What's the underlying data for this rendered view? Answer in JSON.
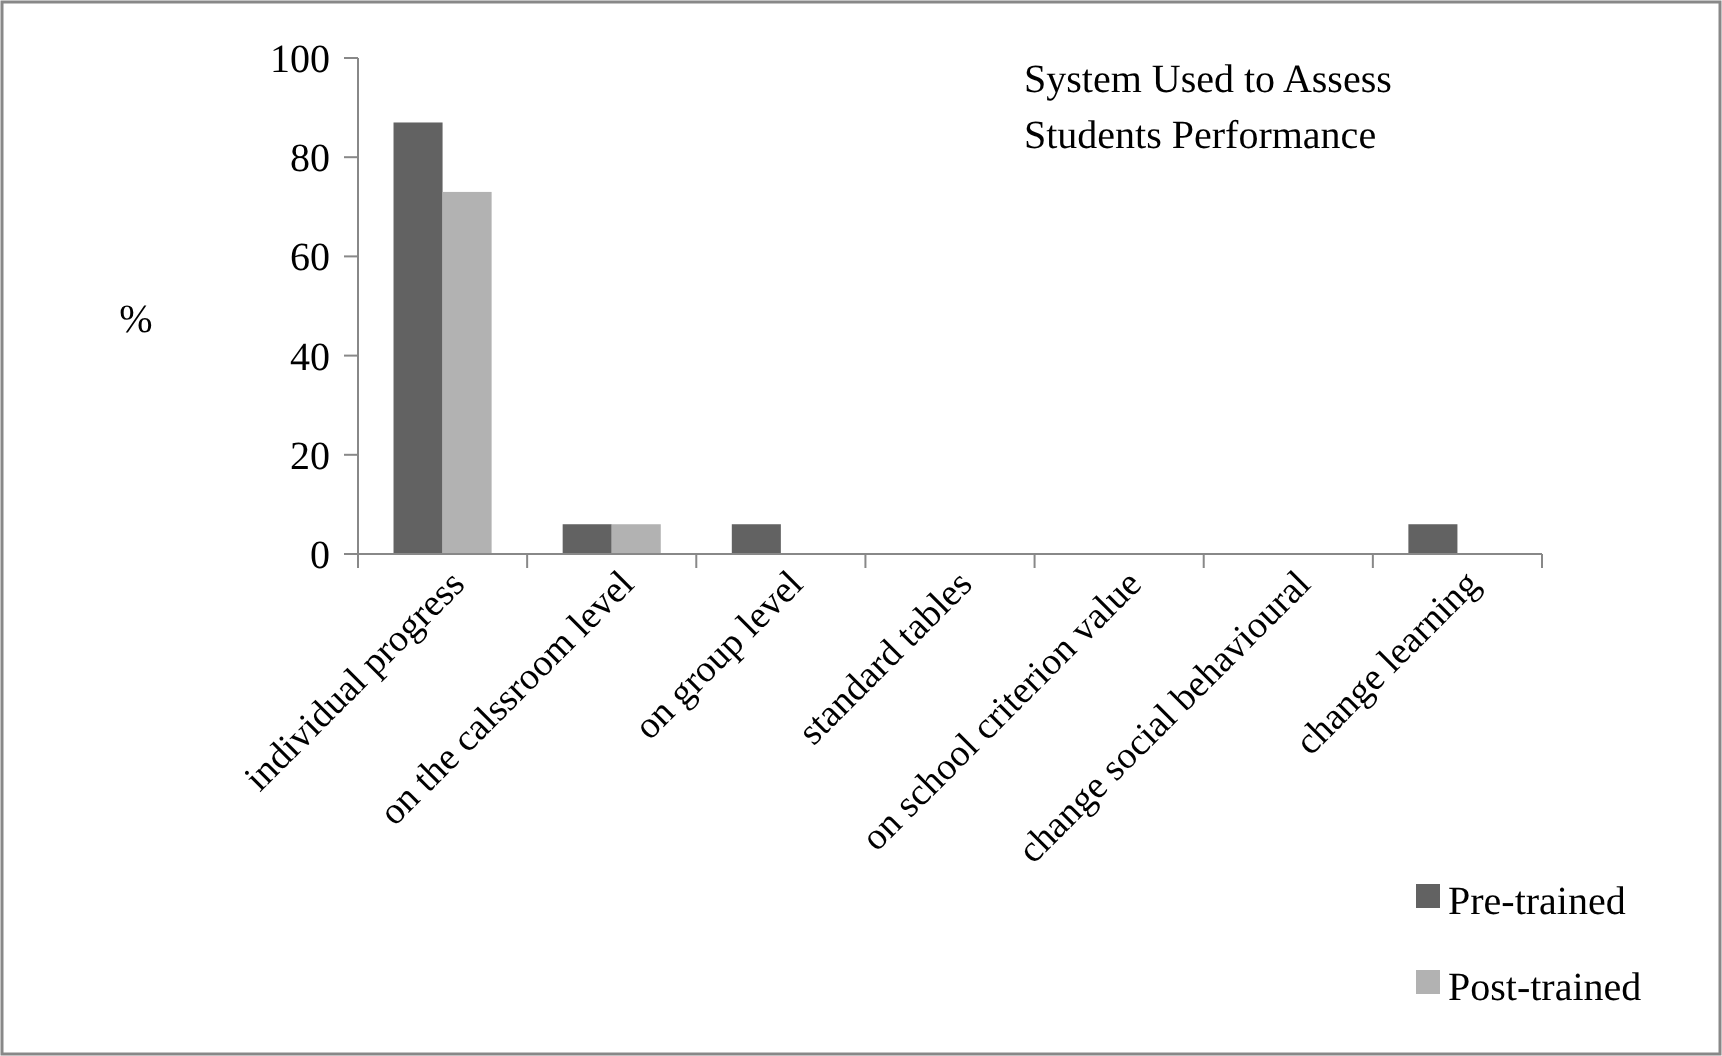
{
  "chart_data": {
    "type": "bar",
    "title": "System Used to Assess\nStudents Performance",
    "ylabel": "%",
    "categories": [
      "individual progress",
      "on the calssroom level",
      "on group level",
      "standard tables",
      "on school criterion value",
      "change social behavioural",
      "change learning"
    ],
    "series": [
      {
        "name": "Pre-trained",
        "color": "#626262",
        "values": [
          87,
          6,
          6,
          0,
          0,
          0,
          6
        ]
      },
      {
        "name": "Post-trained",
        "color": "#b2b2b2",
        "values": [
          73,
          6,
          0,
          0,
          0,
          0,
          0
        ]
      }
    ],
    "ylim": [
      0,
      100
    ],
    "yticks": [
      0,
      20,
      40,
      60,
      80,
      100
    ],
    "grid": false,
    "legend": "bottom right"
  }
}
